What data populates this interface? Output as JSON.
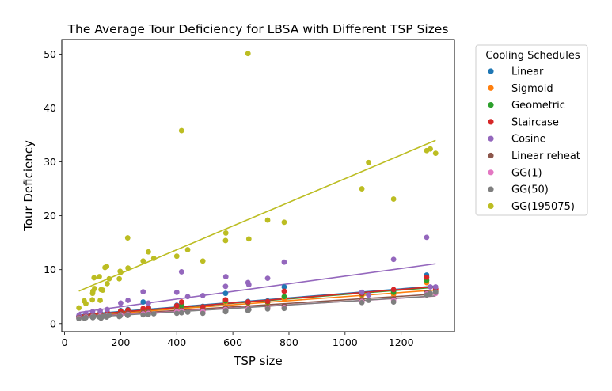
{
  "chart_data": {
    "type": "scatter",
    "title": "The Average Tour Deficiency for LBSA with Different TSP Sizes",
    "xlabel": "TSP size",
    "ylabel": "Tour Deficiency",
    "xlim": [
      -10,
      1390
    ],
    "ylim": [
      -1.5,
      52.7
    ],
    "xticks": [
      0,
      200,
      400,
      600,
      800,
      1000,
      1200
    ],
    "yticks": [
      0,
      10,
      20,
      30,
      40,
      50
    ],
    "grid": false,
    "legend": {
      "title": "Cooling Schedules",
      "placement": "outside-right"
    },
    "sizes": [
      51,
      70,
      76,
      99,
      100,
      101,
      105,
      107,
      124,
      127,
      130,
      136,
      144,
      150,
      152,
      159,
      195,
      198,
      200,
      225,
      226,
      280,
      299,
      318,
      400,
      417,
      439,
      493,
      574,
      575,
      654,
      657,
      724,
      783,
      1060,
      1084,
      1173,
      1291,
      1304,
      1323
    ],
    "series": [
      {
        "name": "Linear",
        "color": "#1f77b4",
        "fit": [
          1.4,
          0.0042
        ],
        "x": [
          51,
          76,
          100,
          127,
          152,
          200,
          226,
          280,
          299,
          400,
          417,
          493,
          574,
          654,
          724,
          783,
          1060,
          1173,
          1291,
          1323
        ],
        "y": [
          1.4,
          1.7,
          1.8,
          2.0,
          2.1,
          2.4,
          2.6,
          4.0,
          3.0,
          3.4,
          3.5,
          3.2,
          5.6,
          4.1,
          4.2,
          6.8,
          5.8,
          6.0,
          9.0,
          6.5
        ]
      },
      {
        "name": "Sigmoid",
        "color": "#ff7f0e",
        "fit": [
          1.2,
          0.0038
        ],
        "x": [
          51,
          76,
          100,
          127,
          152,
          200,
          226,
          280,
          299,
          400,
          417,
          493,
          574,
          654,
          724,
          783,
          1060,
          1173,
          1291,
          1323
        ],
        "y": [
          1.2,
          1.5,
          1.6,
          1.8,
          1.9,
          2.2,
          2.4,
          2.6,
          2.7,
          3.1,
          3.2,
          3.0,
          4.0,
          3.8,
          3.9,
          4.6,
          5.2,
          5.4,
          7.6,
          6.0
        ]
      },
      {
        "name": "Geometric",
        "color": "#2ca02c",
        "fit": [
          1.3,
          0.0041
        ],
        "x": [
          51,
          76,
          100,
          127,
          152,
          200,
          226,
          280,
          299,
          400,
          417,
          493,
          574,
          654,
          724,
          783,
          1060,
          1173,
          1291,
          1323
        ],
        "y": [
          1.3,
          1.6,
          1.7,
          1.9,
          2.0,
          2.3,
          2.5,
          2.7,
          2.8,
          3.2,
          3.3,
          3.1,
          4.2,
          3.9,
          4.0,
          5.0,
          5.5,
          5.8,
          8.0,
          6.2
        ]
      },
      {
        "name": "Staircase",
        "color": "#d62728",
        "fit": [
          1.3,
          0.0042
        ],
        "x": [
          51,
          76,
          100,
          127,
          152,
          200,
          226,
          280,
          299,
          400,
          417,
          493,
          574,
          654,
          724,
          783,
          1060,
          1173,
          1291,
          1323
        ],
        "y": [
          1.3,
          1.6,
          1.7,
          1.9,
          2.0,
          2.3,
          2.5,
          2.8,
          2.9,
          3.3,
          4.0,
          3.1,
          4.4,
          4.0,
          4.1,
          6.0,
          5.6,
          6.3,
          8.6,
          6.4
        ]
      },
      {
        "name": "Cosine",
        "color": "#9467bd",
        "fit": [
          1.7,
          0.0071
        ],
        "x": [
          51,
          76,
          100,
          127,
          152,
          200,
          226,
          280,
          299,
          400,
          417,
          439,
          493,
          574,
          575,
          654,
          657,
          724,
          783,
          1060,
          1084,
          1173,
          1291,
          1304,
          1323
        ],
        "y": [
          1.5,
          1.9,
          2.2,
          2.4,
          2.6,
          3.8,
          4.3,
          5.9,
          3.8,
          5.8,
          9.6,
          5.0,
          5.2,
          6.9,
          8.7,
          7.6,
          7.2,
          8.4,
          11.4,
          5.8,
          5.3,
          11.9,
          16.0,
          6.8,
          6.8
        ]
      },
      {
        "name": "Linear reheat",
        "color": "#8c564b",
        "fit": [
          1.1,
          0.0033
        ],
        "x": [
          51,
          76,
          100,
          127,
          152,
          200,
          226,
          280,
          299,
          400,
          417,
          493,
          574,
          654,
          724,
          783,
          1060,
          1173,
          1291,
          1323
        ],
        "y": [
          1.1,
          1.3,
          1.4,
          1.5,
          1.6,
          1.8,
          1.9,
          2.0,
          2.1,
          2.4,
          2.5,
          2.4,
          2.9,
          2.9,
          3.0,
          3.3,
          4.4,
          4.6,
          5.8,
          5.9
        ]
      },
      {
        "name": "GG(1)",
        "color": "#e377c2",
        "fit": [
          1.0,
          0.0031
        ],
        "x": [
          51,
          76,
          100,
          127,
          152,
          200,
          226,
          280,
          299,
          400,
          417,
          493,
          574,
          654,
          724,
          783,
          1060,
          1173,
          1291,
          1323
        ],
        "y": [
          1.0,
          1.2,
          1.3,
          1.4,
          1.5,
          1.6,
          1.7,
          1.8,
          1.9,
          2.2,
          2.3,
          2.2,
          2.6,
          2.7,
          2.8,
          3.0,
          4.1,
          4.3,
          5.5,
          5.6
        ]
      },
      {
        "name": "GG(50)",
        "color": "#7f7f7f",
        "fit": [
          0.9,
          0.0032
        ],
        "x": [
          51,
          70,
          76,
          99,
          101,
          105,
          124,
          130,
          136,
          144,
          150,
          159,
          195,
          198,
          225,
          226,
          280,
          299,
          318,
          400,
          417,
          439,
          493,
          574,
          575,
          654,
          657,
          724,
          783,
          1060,
          1084,
          1173,
          1291,
          1304,
          1323
        ],
        "y": [
          0.9,
          1.0,
          1.1,
          1.2,
          1.1,
          1.3,
          1.2,
          1.0,
          1.3,
          1.4,
          1.2,
          1.5,
          1.3,
          1.4,
          1.5,
          1.6,
          1.6,
          1.7,
          1.8,
          1.9,
          2.0,
          2.1,
          1.9,
          2.2,
          2.4,
          2.4,
          2.6,
          2.7,
          2.8,
          3.9,
          4.3,
          4.0,
          5.3,
          5.6,
          5.8
        ]
      },
      {
        "name": "GG(195075)",
        "color": "#bcbd22",
        "fit": [
          4.9,
          0.022
        ],
        "x": [
          51,
          70,
          76,
          99,
          100,
          101,
          105,
          107,
          124,
          127,
          130,
          136,
          144,
          150,
          152,
          159,
          195,
          198,
          200,
          225,
          226,
          280,
          299,
          318,
          400,
          417,
          439,
          493,
          574,
          575,
          654,
          657,
          724,
          783,
          1060,
          1084,
          1173,
          1291,
          1304,
          1323
        ],
        "y": [
          2.9,
          4.2,
          3.7,
          4.4,
          5.6,
          6.0,
          8.5,
          6.5,
          8.7,
          4.3,
          6.3,
          6.2,
          10.4,
          10.6,
          7.4,
          8.3,
          8.3,
          9.7,
          9.5,
          15.9,
          10.3,
          11.6,
          13.3,
          12.1,
          12.5,
          35.8,
          13.7,
          11.6,
          15.4,
          16.8,
          50.1,
          15.7,
          19.2,
          18.8,
          25.0,
          29.9,
          23.1,
          32.1,
          32.4,
          31.6
        ]
      }
    ]
  }
}
